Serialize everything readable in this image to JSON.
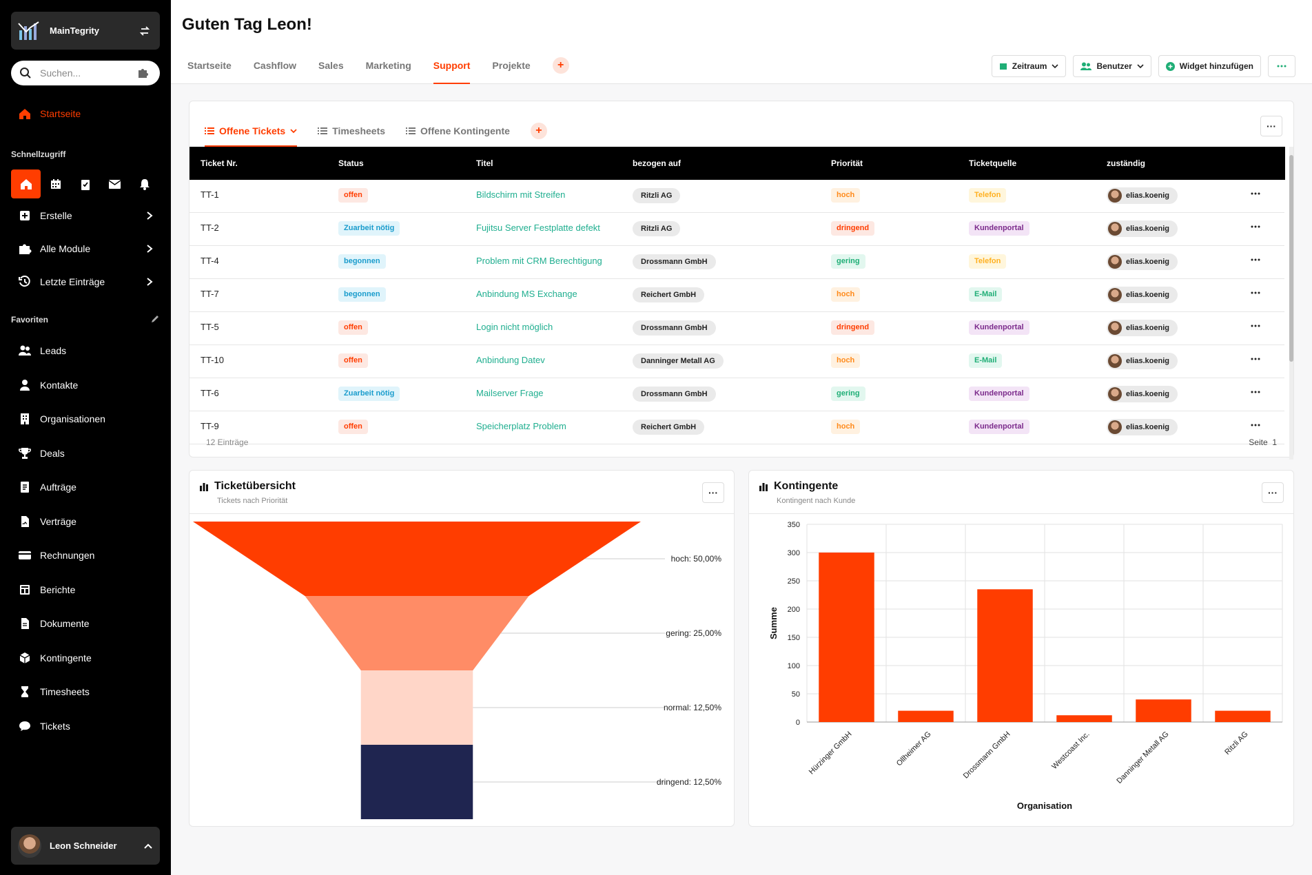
{
  "app": {
    "brand": "MainTegrity"
  },
  "search": {
    "placeholder": "Suchen..."
  },
  "sidebar": {
    "home": "Startseite",
    "quick_label": "Schnellzugriff",
    "menu": [
      {
        "label": "Erstelle",
        "icon": "plus-square-icon"
      },
      {
        "label": "Alle Module",
        "icon": "puzzle-icon"
      },
      {
        "label": "Letzte Einträge",
        "icon": "history-icon"
      }
    ],
    "fav_label": "Favoriten",
    "favorites": [
      {
        "label": "Leads",
        "icon": "users-icon"
      },
      {
        "label": "Kontakte",
        "icon": "user-icon"
      },
      {
        "label": "Organisationen",
        "icon": "building-icon"
      },
      {
        "label": "Deals",
        "icon": "trophy-icon"
      },
      {
        "label": "Aufträge",
        "icon": "order-icon"
      },
      {
        "label": "Verträge",
        "icon": "contract-icon"
      },
      {
        "label": "Rechnungen",
        "icon": "credit-card-icon"
      },
      {
        "label": "Berichte",
        "icon": "report-icon"
      },
      {
        "label": "Dokumente",
        "icon": "document-icon"
      },
      {
        "label": "Kontingente",
        "icon": "box-icon"
      },
      {
        "label": "Timesheets",
        "icon": "hourglass-icon"
      },
      {
        "label": "Tickets",
        "icon": "chat-icon"
      }
    ],
    "user": "Leon Schneider"
  },
  "header": {
    "greeting": "Guten Tag Leon!",
    "tabs": [
      "Startseite",
      "Cashflow",
      "Sales",
      "Marketing",
      "Support",
      "Projekte"
    ],
    "active_tab": "Support",
    "buttons": {
      "zeitraum": "Zeitraum",
      "benutzer": "Benutzer",
      "widget": "Widget hinzufügen"
    }
  },
  "tickets_widget": {
    "tabs": [
      "Offene Tickets",
      "Timesheets",
      "Offene Kontingente"
    ],
    "columns": [
      "Ticket Nr.",
      "Status",
      "Titel",
      "bezogen auf",
      "Priorität",
      "Ticketquelle",
      "zuständig"
    ],
    "rows": [
      {
        "nr": "TT-1",
        "status": "offen",
        "titel": "Bildschirm mit Streifen",
        "org": "Ritzli AG",
        "prio": "hoch",
        "quelle": "Telefon",
        "user": "elias.koenig"
      },
      {
        "nr": "TT-2",
        "status": "Zuarbeit nötig",
        "titel": "Fujitsu Server Festplatte defekt",
        "org": "Ritzli AG",
        "prio": "dringend",
        "quelle": "Kundenportal",
        "user": "elias.koenig"
      },
      {
        "nr": "TT-4",
        "status": "begonnen",
        "titel": "Problem mit CRM Berechtigung",
        "org": "Drossmann GmbH",
        "prio": "gering",
        "quelle": "Telefon",
        "user": "elias.koenig"
      },
      {
        "nr": "TT-7",
        "status": "begonnen",
        "titel": "Anbindung MS Exchange",
        "org": "Reichert GmbH",
        "prio": "hoch",
        "quelle": "E-Mail",
        "user": "elias.koenig"
      },
      {
        "nr": "TT-5",
        "status": "offen",
        "titel": "Login nicht möglich",
        "org": "Drossmann GmbH",
        "prio": "dringend",
        "quelle": "Kundenportal",
        "user": "elias.koenig"
      },
      {
        "nr": "TT-10",
        "status": "offen",
        "titel": "Anbindung Datev",
        "org": "Danninger Metall AG",
        "prio": "hoch",
        "quelle": "E-Mail",
        "user": "elias.koenig"
      },
      {
        "nr": "TT-6",
        "status": "Zuarbeit nötig",
        "titel": "Mailserver Frage",
        "org": "Drossmann GmbH",
        "prio": "gering",
        "quelle": "Kundenportal",
        "user": "elias.koenig"
      },
      {
        "nr": "TT-9",
        "status": "offen",
        "titel": "Speicherplatz Problem",
        "org": "Reichert GmbH",
        "prio": "hoch",
        "quelle": "Kundenportal",
        "user": "elias.koenig"
      }
    ],
    "footer_count": "12 Einträge",
    "footer_page": "Seite",
    "page_number": "1"
  },
  "funnel_widget": {
    "title": "Ticketübersicht",
    "subtitle": "Tickets nach Priorität"
  },
  "bar_widget": {
    "title": "Kontingente",
    "subtitle": "Kontingent nach Kunde"
  },
  "chart_data": [
    {
      "type": "funnel",
      "categories": [
        "hoch",
        "gering",
        "normal",
        "dringend"
      ],
      "values": [
        50,
        25,
        12.5,
        12.5
      ],
      "labels": [
        "hoch: 50,00%",
        "gering: 25,00%",
        "normal: 12,50%",
        "dringend: 12,50%"
      ],
      "colors": [
        "#ff3d00",
        "#ff8c66",
        "#ffd6c8",
        "#1f2550"
      ]
    },
    {
      "type": "bar",
      "categories": [
        "Hürzinger GmbH",
        "Ollheimer AG",
        "Drossmann GmbH",
        "Westcoast Inc.",
        "Danninger Metall AG",
        "Ritzli AG"
      ],
      "values": [
        300,
        20,
        235,
        12,
        40,
        20
      ],
      "xlabel": "Organisation",
      "ylabel": "Summe",
      "ylim": [
        0,
        350
      ],
      "yticks": [
        0,
        50,
        100,
        150,
        200,
        250,
        300,
        350
      ],
      "color": "#ff3d00",
      "grid": true
    }
  ],
  "colors": {
    "accent": "#ff3d00",
    "sidebar": "#000000"
  }
}
